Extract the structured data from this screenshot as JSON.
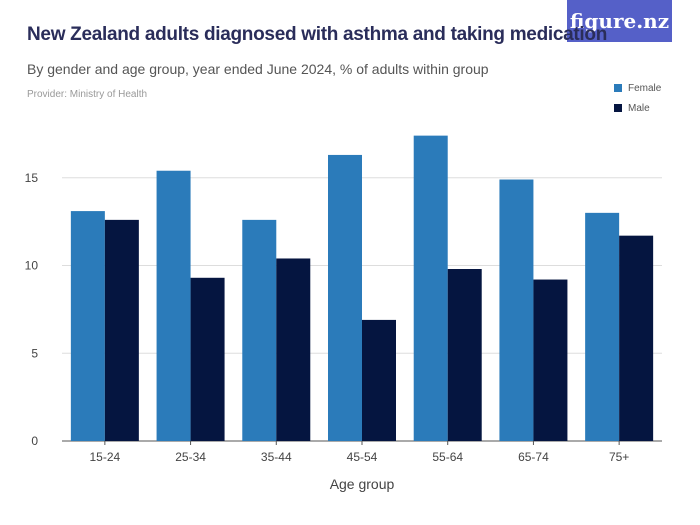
{
  "logo": "figure.nz",
  "title": "New Zealand adults diagnosed with asthma and taking medication",
  "subtitle": "By gender and age group, year ended June 2024, % of adults within group",
  "provider": "Provider: Ministry of Health",
  "chart_data": {
    "type": "bar",
    "xlabel": "Age group",
    "ylabel": "",
    "categories": [
      "15-24",
      "25-34",
      "35-44",
      "45-54",
      "55-64",
      "65-74",
      "75+"
    ],
    "series": [
      {
        "name": "Female",
        "color": "#2b7bba",
        "values": [
          13.1,
          15.4,
          12.6,
          16.3,
          17.4,
          14.9,
          13.0
        ]
      },
      {
        "name": "Male",
        "color": "#051540",
        "values": [
          12.6,
          9.3,
          10.4,
          6.9,
          9.8,
          9.2,
          11.7
        ]
      }
    ],
    "yticks": [
      0,
      5,
      10,
      15
    ],
    "ylim": [
      0,
      18
    ],
    "grid": true,
    "legend": "top-right"
  }
}
